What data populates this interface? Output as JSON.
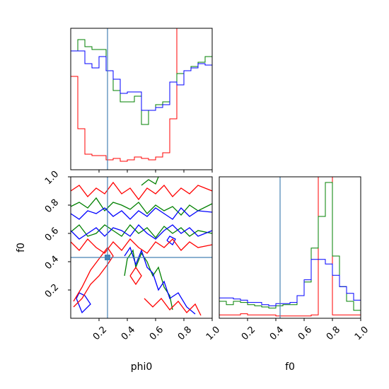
{
  "chart_data": {
    "type": "corner",
    "parameters": [
      "phi0",
      "f0"
    ],
    "truth": {
      "phi0": 0.26,
      "f0": 0.43
    },
    "colors": {
      "red": "#ff0000",
      "green": "#008000",
      "blue": "#0000ff",
      "truth": "#4682b4",
      "axes": "#000000"
    },
    "ticks": {
      "phi0": [
        "0.2",
        "0.4",
        "0.6",
        "0.8",
        "1.0"
      ],
      "f0": [
        "0.2",
        "0.4",
        "0.6",
        "0.8",
        "1.0"
      ]
    },
    "xlabel_phi0": "phi0",
    "xlabel_f0": "f0",
    "ylabel_f0": "f0",
    "xlim": [
      0,
      1
    ],
    "ylim": [
      0,
      1
    ],
    "marginal_phi0": {
      "bins": [
        0,
        0.05,
        0.1,
        0.15,
        0.2,
        0.25,
        0.3,
        0.35,
        0.4,
        0.45,
        0.5,
        0.55,
        0.6,
        0.65,
        0.7,
        0.75,
        0.8,
        0.85,
        0.9,
        0.95,
        1.0
      ],
      "series": [
        {
          "color": "red",
          "values": [
            0.66,
            0.29,
            0.11,
            0.1,
            0.1,
            0.07,
            0.08,
            0.06,
            0.07,
            0.09,
            0.08,
            0.07,
            0.09,
            0.12,
            0.36,
            1.25,
            1.25,
            1.25,
            1.25,
            1.25
          ]
        },
        {
          "color": "green",
          "values": [
            0.84,
            0.92,
            0.87,
            0.85,
            0.85,
            0.7,
            0.56,
            0.48,
            0.48,
            0.52,
            0.32,
            0.42,
            0.46,
            0.48,
            0.62,
            0.68,
            0.7,
            0.73,
            0.76,
            0.8
          ]
        },
        {
          "color": "blue",
          "values": [
            0.84,
            0.84,
            0.75,
            0.72,
            0.8,
            0.7,
            0.64,
            0.54,
            0.55,
            0.55,
            0.42,
            0.42,
            0.44,
            0.46,
            0.62,
            0.6,
            0.7,
            0.72,
            0.75,
            0.74
          ]
        }
      ]
    },
    "marginal_f0": {
      "bins": [
        0,
        0.05,
        0.1,
        0.15,
        0.2,
        0.25,
        0.3,
        0.35,
        0.4,
        0.45,
        0.5,
        0.55,
        0.6,
        0.65,
        0.7,
        0.75,
        0.8,
        0.85,
        0.9,
        0.95,
        1.0
      ],
      "series": [
        {
          "color": "red",
          "values": [
            0.03,
            0.03,
            0.03,
            0.04,
            0.03,
            0.03,
            0.03,
            0.03,
            0.02,
            0.02,
            0.02,
            0.02,
            0.02,
            0.03,
            1.6,
            1.6,
            0.03,
            0.03,
            0.03,
            0.03
          ]
        },
        {
          "color": "green",
          "values": [
            0.15,
            0.12,
            0.15,
            0.14,
            0.12,
            0.11,
            0.1,
            0.09,
            0.11,
            0.12,
            0.12,
            0.2,
            0.32,
            0.62,
            0.9,
            1.2,
            0.55,
            0.28,
            0.15,
            0.07
          ]
        },
        {
          "color": "blue",
          "values": [
            0.18,
            0.18,
            0.17,
            0.16,
            0.14,
            0.14,
            0.12,
            0.11,
            0.13,
            0.13,
            0.14,
            0.2,
            0.34,
            0.52,
            0.52,
            0.48,
            0.38,
            0.28,
            0.22,
            0.16
          ]
        }
      ]
    },
    "contours_phi0_f0": [
      {
        "color": "green",
        "x": [
          0.0,
          0.06,
          0.12,
          0.18,
          0.24,
          0.3,
          0.36,
          0.42,
          0.48,
          0.54,
          0.6,
          0.66,
          0.72,
          0.78,
          0.84,
          0.9,
          1.0
        ],
        "y": [
          0.79,
          0.82,
          0.78,
          0.85,
          0.76,
          0.82,
          0.8,
          0.77,
          0.82,
          0.74,
          0.8,
          0.76,
          0.79,
          0.73,
          0.8,
          0.76,
          0.81
        ]
      },
      {
        "color": "green",
        "x": [
          0.0,
          0.06,
          0.12,
          0.18,
          0.24,
          0.3,
          0.36,
          0.42,
          0.48,
          0.54,
          0.6,
          0.66,
          0.72,
          0.78,
          0.84,
          0.9,
          1.0
        ],
        "y": [
          0.61,
          0.66,
          0.58,
          0.6,
          0.66,
          0.62,
          0.58,
          0.66,
          0.6,
          0.64,
          0.57,
          0.65,
          0.6,
          0.64,
          0.58,
          0.62,
          0.6
        ]
      },
      {
        "color": "green",
        "x": [
          0.38,
          0.4,
          0.44,
          0.46,
          0.5,
          0.54,
          0.58,
          0.62,
          0.66,
          0.7,
          0.72
        ],
        "y": [
          0.3,
          0.42,
          0.48,
          0.36,
          0.46,
          0.4,
          0.3,
          0.36,
          0.22,
          0.16,
          0.06
        ]
      },
      {
        "color": "green",
        "x": [
          0.5,
          0.55,
          0.6,
          0.62
        ],
        "y": [
          0.94,
          0.98,
          0.95,
          1.0
        ]
      },
      {
        "color": "blue",
        "x": [
          0.0,
          0.06,
          0.12,
          0.18,
          0.24,
          0.3,
          0.36,
          0.42,
          0.48,
          0.54,
          0.6,
          0.66,
          0.72,
          0.78,
          0.84,
          0.9,
          1.0
        ],
        "y": [
          0.74,
          0.7,
          0.76,
          0.74,
          0.78,
          0.72,
          0.76,
          0.7,
          0.76,
          0.72,
          0.78,
          0.74,
          0.7,
          0.78,
          0.72,
          0.76,
          0.75
        ]
      },
      {
        "color": "blue",
        "x": [
          0.0,
          0.06,
          0.12,
          0.18,
          0.24,
          0.3,
          0.36,
          0.42,
          0.48,
          0.54,
          0.6,
          0.66,
          0.72,
          0.78,
          0.84,
          0.9,
          1.0
        ],
        "y": [
          0.62,
          0.56,
          0.6,
          0.64,
          0.58,
          0.64,
          0.62,
          0.58,
          0.66,
          0.6,
          0.56,
          0.62,
          0.66,
          0.6,
          0.64,
          0.58,
          0.62
        ]
      },
      {
        "color": "blue",
        "x": [
          0.38,
          0.42,
          0.46,
          0.5,
          0.54,
          0.58,
          0.62,
          0.66,
          0.7,
          0.76,
          0.82,
          0.88
        ],
        "y": [
          0.44,
          0.5,
          0.38,
          0.48,
          0.36,
          0.32,
          0.2,
          0.26,
          0.14,
          0.18,
          0.08,
          0.03
        ]
      },
      {
        "color": "blue",
        "x": [
          0.04,
          0.08,
          0.14,
          0.1,
          0.06,
          0.04
        ],
        "y": [
          0.14,
          0.04,
          0.1,
          0.16,
          0.18,
          0.14
        ]
      },
      {
        "color": "blue",
        "x": [
          0.68,
          0.72,
          0.74,
          0.7,
          0.68
        ],
        "y": [
          0.55,
          0.52,
          0.56,
          0.58,
          0.55
        ]
      },
      {
        "color": "red",
        "x": [
          0.0,
          0.06,
          0.12,
          0.18,
          0.24,
          0.3,
          0.36,
          0.42,
          0.48,
          0.54,
          0.6,
          0.66,
          0.72,
          0.78,
          0.84,
          0.9,
          1.0
        ],
        "y": [
          0.9,
          0.94,
          0.86,
          0.92,
          0.88,
          0.96,
          0.88,
          0.92,
          0.84,
          0.92,
          0.88,
          0.94,
          0.86,
          0.92,
          0.88,
          0.94,
          0.9
        ]
      },
      {
        "color": "red",
        "x": [
          0.0,
          0.06,
          0.12,
          0.18,
          0.24,
          0.3,
          0.36,
          0.42,
          0.48,
          0.54,
          0.6,
          0.66,
          0.72,
          0.78,
          0.84,
          0.9,
          1.0
        ],
        "y": [
          0.54,
          0.48,
          0.56,
          0.5,
          0.46,
          0.54,
          0.48,
          0.56,
          0.5,
          0.46,
          0.54,
          0.5,
          0.56,
          0.48,
          0.54,
          0.5,
          0.52
        ]
      },
      {
        "color": "red",
        "x": [
          0.02,
          0.08,
          0.14,
          0.2,
          0.26,
          0.3,
          0.26,
          0.2,
          0.14,
          0.08,
          0.02
        ],
        "y": [
          0.08,
          0.14,
          0.24,
          0.3,
          0.38,
          0.44,
          0.5,
          0.42,
          0.34,
          0.22,
          0.12
        ]
      },
      {
        "color": "red",
        "x": [
          0.42,
          0.46,
          0.5,
          0.46,
          0.42
        ],
        "y": [
          0.3,
          0.36,
          0.3,
          0.24,
          0.3
        ]
      },
      {
        "color": "red",
        "x": [
          0.52,
          0.58,
          0.64,
          0.7,
          0.76,
          0.82,
          0.88,
          0.92
        ],
        "y": [
          0.14,
          0.08,
          0.14,
          0.06,
          0.12,
          0.04,
          0.1,
          0.02
        ]
      }
    ]
  }
}
